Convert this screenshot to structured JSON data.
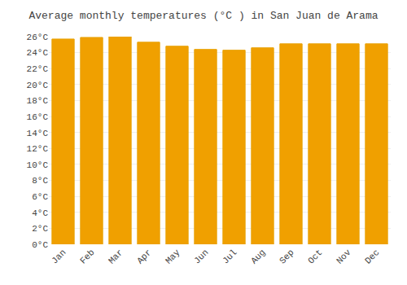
{
  "chart_data": {
    "type": "bar",
    "title": "Average monthly temperatures (°C ) in San Juan de Arama",
    "categories": [
      "Jan",
      "Feb",
      "Mar",
      "Apr",
      "May",
      "Jun",
      "Jul",
      "Aug",
      "Sep",
      "Oct",
      "Nov",
      "Dec"
    ],
    "values": [
      25.7,
      25.9,
      26.0,
      25.3,
      24.8,
      24.4,
      24.3,
      24.6,
      25.1,
      25.1,
      25.1,
      25.1
    ],
    "color": "#F0A000",
    "ylim": [
      0,
      26
    ],
    "yticks": [
      {
        "value": 0,
        "label": "0°C"
      },
      {
        "value": 2,
        "label": "2°C"
      },
      {
        "value": 4,
        "label": "4°C"
      },
      {
        "value": 6,
        "label": "6°C"
      },
      {
        "value": 8,
        "label": "8°C"
      },
      {
        "value": 10,
        "label": "10°C"
      },
      {
        "value": 12,
        "label": "12°C"
      },
      {
        "value": 14,
        "label": "14°C"
      },
      {
        "value": 16,
        "label": "16°C"
      },
      {
        "value": 18,
        "label": "18°C"
      },
      {
        "value": 20,
        "label": "20°C"
      },
      {
        "value": 22,
        "label": "22°C"
      },
      {
        "value": 24,
        "label": "24°C"
      },
      {
        "value": 26,
        "label": "26°C"
      }
    ],
    "grid": true
  }
}
